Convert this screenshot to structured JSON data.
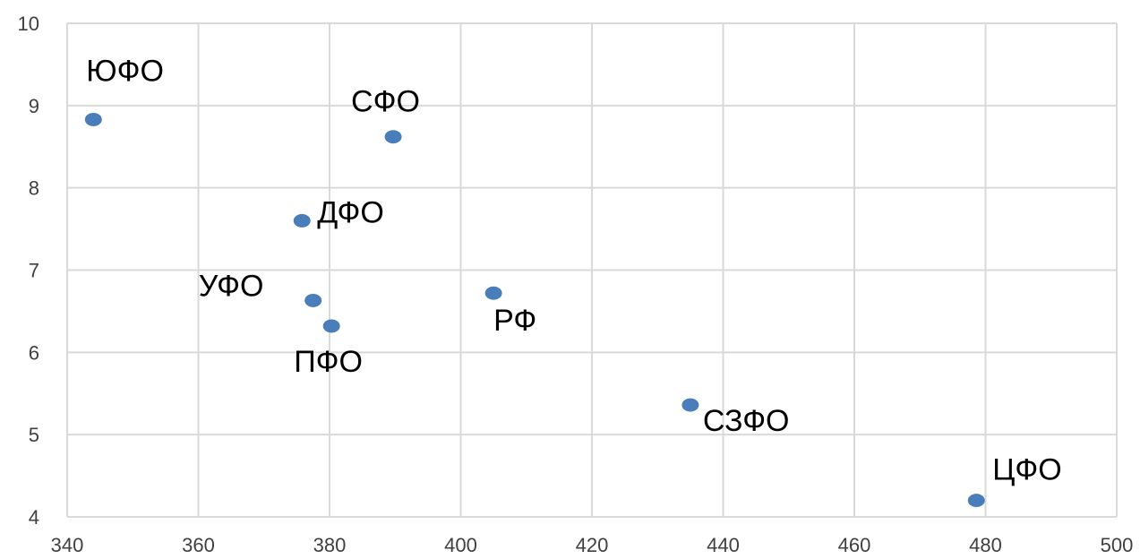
{
  "chart_data": {
    "type": "scatter",
    "title": "",
    "xlabel": "",
    "ylabel": "",
    "xlim": [
      340,
      500
    ],
    "ylim": [
      4,
      10
    ],
    "x_ticks": [
      340,
      360,
      380,
      400,
      420,
      440,
      460,
      480,
      500
    ],
    "y_ticks": [
      4,
      5,
      6,
      7,
      8,
      9,
      10
    ],
    "grid": true,
    "legend": "none",
    "marker_color": "#4a7ebb",
    "points": [
      {
        "label": "ЮФО",
        "x": 344,
        "y": 8.83
      },
      {
        "label": "СФО",
        "x": 389.7,
        "y": 8.62
      },
      {
        "label": "ДФО",
        "x": 375.8,
        "y": 7.6
      },
      {
        "label": "УФО",
        "x": 377.5,
        "y": 6.63
      },
      {
        "label": "ПФО",
        "x": 380.3,
        "y": 6.32
      },
      {
        "label": "РФ",
        "x": 405,
        "y": 6.72
      },
      {
        "label": "СЗФО",
        "x": 435,
        "y": 5.36
      },
      {
        "label": "ЦФО",
        "x": 478.6,
        "y": 4.2
      }
    ]
  }
}
